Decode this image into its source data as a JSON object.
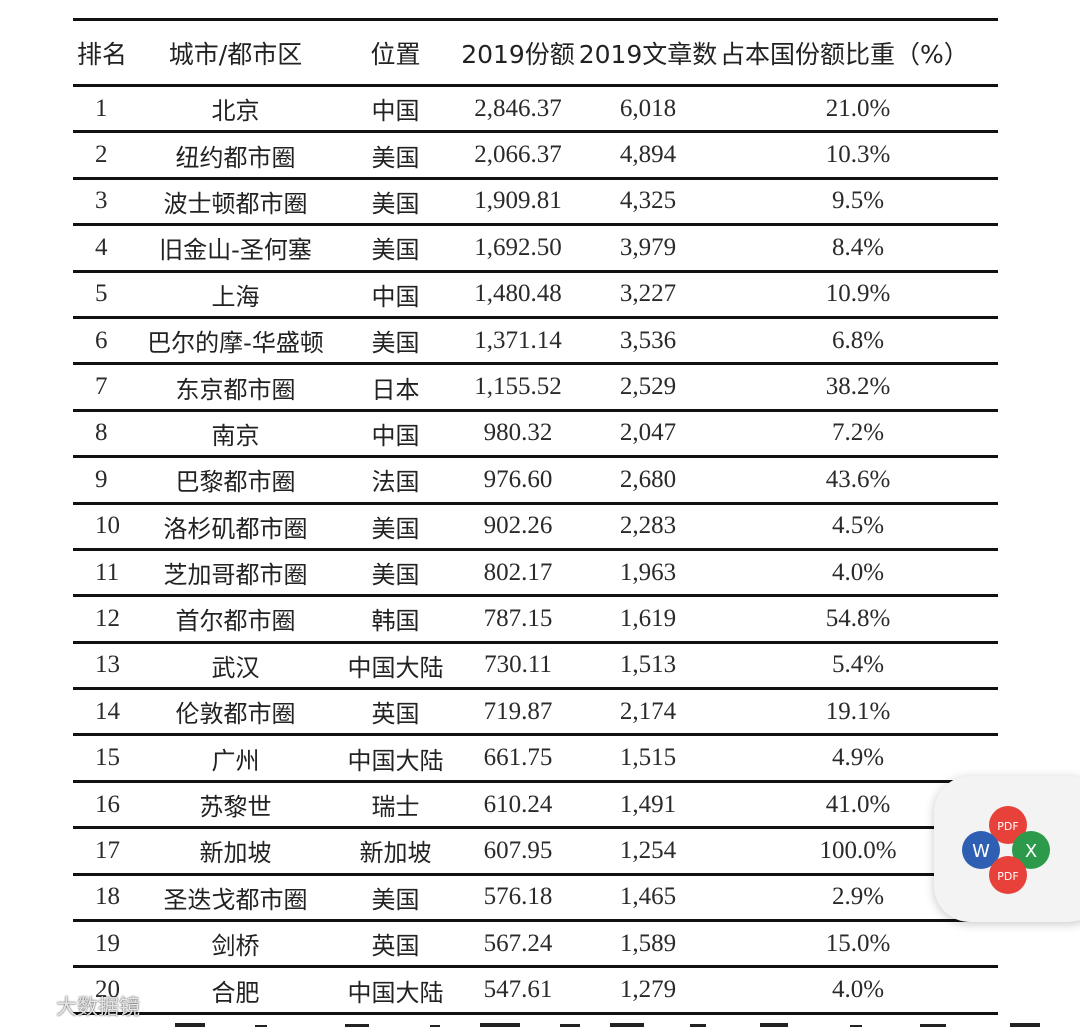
{
  "table": {
    "headers": {
      "rank": "排名",
      "city": "城市/都市区",
      "location": "位置",
      "share_2019": "2019份额",
      "articles_2019": "2019文章数",
      "pct": "占本国份额比重（%）"
    },
    "rows": [
      {
        "rank": "1",
        "city": "北京",
        "location": "中国",
        "share": "2,846.37",
        "articles": "6,018",
        "pct": "21.0%"
      },
      {
        "rank": "2",
        "city": "纽约都市圈",
        "location": "美国",
        "share": "2,066.37",
        "articles": "4,894",
        "pct": "10.3%"
      },
      {
        "rank": "3",
        "city": "波士顿都市圈",
        "location": "美国",
        "share": "1,909.81",
        "articles": "4,325",
        "pct": "9.5%"
      },
      {
        "rank": "4",
        "city": "旧金山-圣何塞",
        "location": "美国",
        "share": "1,692.50",
        "articles": "3,979",
        "pct": "8.4%"
      },
      {
        "rank": "5",
        "city": "上海",
        "location": "中国",
        "share": "1,480.48",
        "articles": "3,227",
        "pct": "10.9%"
      },
      {
        "rank": "6",
        "city": "巴尔的摩-华盛顿",
        "location": "美国",
        "share": "1,371.14",
        "articles": "3,536",
        "pct": "6.8%"
      },
      {
        "rank": "7",
        "city": "东京都市圈",
        "location": "日本",
        "share": "1,155.52",
        "articles": "2,529",
        "pct": "38.2%"
      },
      {
        "rank": "8",
        "city": "南京",
        "location": "中国",
        "share": "980.32",
        "articles": "2,047",
        "pct": "7.2%"
      },
      {
        "rank": "9",
        "city": "巴黎都市圈",
        "location": "法国",
        "share": "976.60",
        "articles": "2,680",
        "pct": "43.6%"
      },
      {
        "rank": "10",
        "city": "洛杉矶都市圈",
        "location": "美国",
        "share": "902.26",
        "articles": "2,283",
        "pct": "4.5%"
      },
      {
        "rank": "11",
        "city": "芝加哥都市圈",
        "location": "美国",
        "share": "802.17",
        "articles": "1,963",
        "pct": "4.0%"
      },
      {
        "rank": "12",
        "city": "首尔都市圈",
        "location": "韩国",
        "share": "787.15",
        "articles": "1,619",
        "pct": "54.8%"
      },
      {
        "rank": "13",
        "city": "武汉",
        "location": "中国大陆",
        "share": "730.11",
        "articles": "1,513",
        "pct": "5.4%"
      },
      {
        "rank": "14",
        "city": "伦敦都市圈",
        "location": "英国",
        "share": "719.87",
        "articles": "2,174",
        "pct": "19.1%"
      },
      {
        "rank": "15",
        "city": "广州",
        "location": "中国大陆",
        "share": "661.75",
        "articles": "1,515",
        "pct": "4.9%"
      },
      {
        "rank": "16",
        "city": "苏黎世",
        "location": "瑞士",
        "share": "610.24",
        "articles": "1,491",
        "pct": "41.0%"
      },
      {
        "rank": "17",
        "city": "新加坡",
        "location": "新加坡",
        "share": "607.95",
        "articles": "1,254",
        "pct": "100.0%"
      },
      {
        "rank": "18",
        "city": "圣迭戈都市圈",
        "location": "美国",
        "share": "576.18",
        "articles": "1,465",
        "pct": "2.9%"
      },
      {
        "rank": "19",
        "city": "剑桥",
        "location": "英国",
        "share": "567.24",
        "articles": "1,589",
        "pct": "15.0%"
      },
      {
        "rank": "20",
        "city": "合肥",
        "location": "中国大陆",
        "share": "547.61",
        "articles": "1,279",
        "pct": "4.0%"
      }
    ]
  },
  "widget": {
    "icons": [
      "pdf-icon",
      "word-icon",
      "excel-icon",
      "pdf-icon"
    ],
    "labels": {
      "pdf": "PDF",
      "word": "W",
      "excel": "X"
    },
    "colors": {
      "pdf": "#e8413a",
      "word": "#2f5fb3",
      "excel": "#2c9a4a"
    }
  },
  "watermark": {
    "text": "大数据镜"
  }
}
